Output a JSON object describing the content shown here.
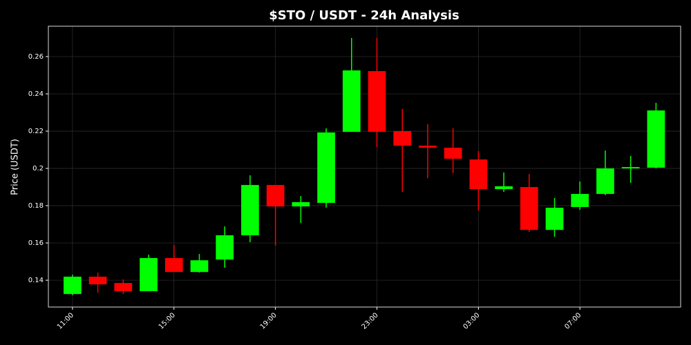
{
  "chart_data": {
    "type": "candlestick",
    "title": "$STO / USDT - 24h Analysis",
    "y_label": "Price (USDT)",
    "categories": [
      "11:00",
      null,
      null,
      null,
      "15:00",
      null,
      null,
      null,
      "19:00",
      null,
      null,
      null,
      "23:00",
      null,
      null,
      null,
      "03:00",
      null,
      null,
      null,
      "07:00",
      null,
      null,
      null
    ],
    "open": [
      0.1326,
      0.1419,
      0.1385,
      0.1341,
      0.1519,
      0.1444,
      0.1511,
      0.1641,
      0.1911,
      0.1796,
      0.1815,
      0.2196,
      0.2522,
      0.22,
      0.2122,
      0.2111,
      0.2048,
      0.1889,
      0.19,
      0.167,
      0.1793,
      0.1863,
      0.2,
      0.2004
    ],
    "high": [
      0.143,
      0.1441,
      0.1404,
      0.1537,
      0.1589,
      0.1541,
      0.1689,
      0.1963,
      0.1911,
      0.1852,
      0.2215,
      0.27,
      0.27,
      0.2319,
      0.2237,
      0.2215,
      0.2093,
      0.1978,
      0.197,
      0.1841,
      0.193,
      0.2096,
      0.2067,
      0.2352
    ],
    "low": [
      0.1319,
      0.1333,
      0.1326,
      0.1341,
      0.1444,
      0.1441,
      0.1467,
      0.1604,
      0.1585,
      0.1707,
      0.1789,
      0.2196,
      0.2115,
      0.1874,
      0.1948,
      0.1974,
      0.1774,
      0.1874,
      0.1659,
      0.1633,
      0.1778,
      0.1856,
      0.1922,
      0.2
    ],
    "close": [
      0.1419,
      0.1378,
      0.1341,
      0.1519,
      0.1444,
      0.1507,
      0.1641,
      0.1911,
      0.1796,
      0.1819,
      0.2193,
      0.2526,
      0.2196,
      0.2122,
      0.2111,
      0.2052,
      0.1889,
      0.1904,
      0.167,
      0.1789,
      0.1863,
      0.2,
      0.2007,
      0.2311
    ],
    "up_color": "#00ff00",
    "down_color": "#ff0000",
    "ylim": [
      0.1256,
      0.2763
    ],
    "yticks": [
      0.14,
      0.16,
      0.18,
      0.2,
      0.22,
      0.24,
      0.26
    ],
    "grid": true
  }
}
